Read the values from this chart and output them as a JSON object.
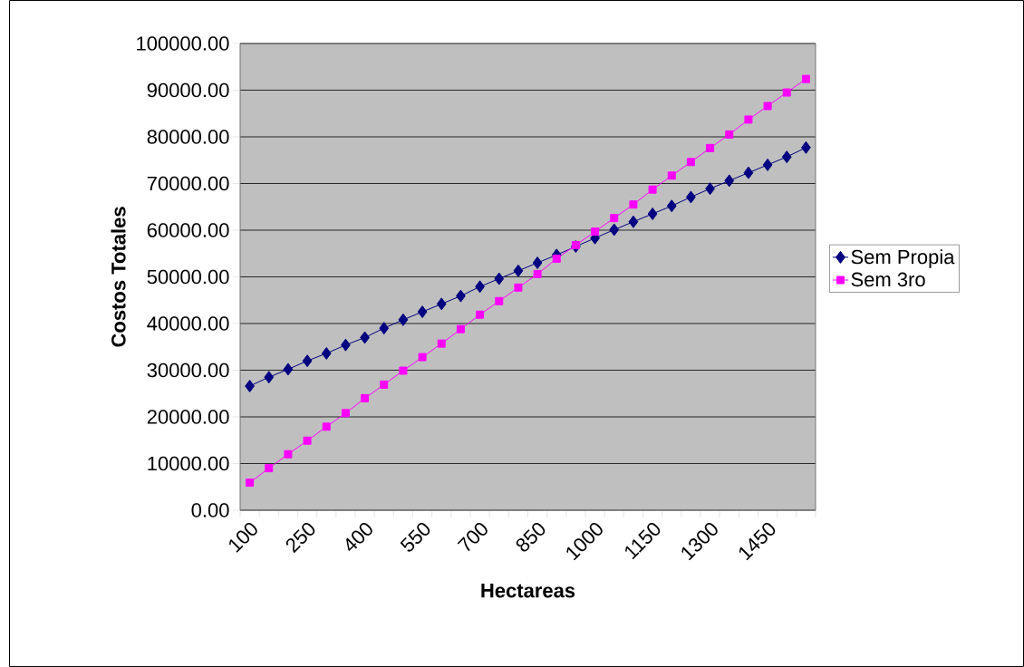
{
  "chart_data": {
    "type": "line",
    "xlabel": "Hectareas",
    "ylabel": "Costos Totales",
    "categories": [
      "100",
      null,
      null,
      "250",
      null,
      null,
      "400",
      null,
      null,
      "550",
      null,
      null,
      "700",
      null,
      null,
      "850",
      null,
      null,
      "1000",
      null,
      null,
      "1150",
      null,
      null,
      "1300",
      null,
      null,
      "1450",
      null,
      null
    ],
    "series": [
      {
        "name": "Sem Propia",
        "color": "#000080",
        "marker": "diamond",
        "values": [
          26600,
          28500,
          30200,
          32000,
          33600,
          35400,
          37000,
          39000,
          40800,
          42500,
          44200,
          45900,
          47900,
          49600,
          51300,
          53000,
          54700,
          56500,
          58300,
          60100,
          61800,
          63500,
          65200,
          67100,
          68900,
          70600,
          72300,
          74000,
          75700,
          77700
        ]
      },
      {
        "name": "Sem 3ro",
        "color": "#ff00ff",
        "marker": "square",
        "values": [
          5900,
          9000,
          12000,
          14900,
          17900,
          20800,
          24000,
          26900,
          29900,
          32800,
          35700,
          38800,
          41900,
          44800,
          47700,
          50600,
          53900,
          56800,
          59700,
          62600,
          65500,
          68700,
          71700,
          74600,
          77600,
          80500,
          83700,
          86600,
          89500,
          92400
        ]
      }
    ],
    "ylim": [
      0,
      100000
    ],
    "yticks": [
      {
        "value": 0,
        "label": "0.00"
      },
      {
        "value": 10000,
        "label": "10000.00"
      },
      {
        "value": 20000,
        "label": "20000.00"
      },
      {
        "value": 30000,
        "label": "30000.00"
      },
      {
        "value": 40000,
        "label": "40000.00"
      },
      {
        "value": 50000,
        "label": "50000.00"
      },
      {
        "value": 60000,
        "label": "60000.00"
      },
      {
        "value": 70000,
        "label": "70000.00"
      },
      {
        "value": 80000,
        "label": "80000.00"
      },
      {
        "value": 90000,
        "label": "90000.00"
      },
      {
        "value": 100000,
        "label": "100000.00"
      }
    ],
    "grid": "y",
    "legend": "right",
    "line_style": "solid"
  }
}
